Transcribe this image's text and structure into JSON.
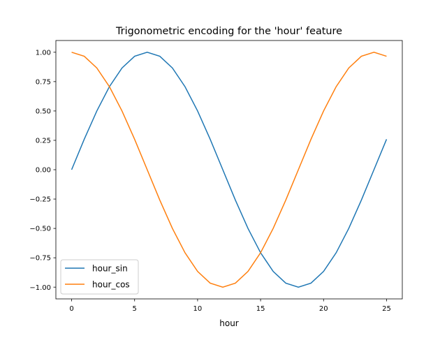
{
  "chart_data": {
    "type": "line",
    "title": "Trigonometric encoding for the 'hour' feature",
    "xlabel": "hour",
    "ylabel": "",
    "xlim": [
      -1.25,
      26.25
    ],
    "ylim": [
      -1.1,
      1.1
    ],
    "grid": false,
    "legend_position": "lower-left",
    "xticks": [
      0,
      5,
      10,
      15,
      20,
      25
    ],
    "xtick_labels": [
      "0",
      "5",
      "10",
      "15",
      "20",
      "25"
    ],
    "yticks": [
      1.0,
      0.75,
      0.5,
      0.25,
      0.0,
      -0.25,
      -0.5,
      -0.75,
      -1.0
    ],
    "ytick_labels": [
      "1.00",
      "0.75",
      "0.50",
      "0.25",
      "0.00",
      "−0.25",
      "−0.50",
      "−0.75",
      "−1.00"
    ],
    "x": [
      0,
      1,
      2,
      3,
      4,
      5,
      6,
      7,
      8,
      9,
      10,
      11,
      12,
      13,
      14,
      15,
      16,
      17,
      18,
      19,
      20,
      21,
      22,
      23,
      24,
      25
    ],
    "series": [
      {
        "name": "hour_sin",
        "color": "#1f77b4",
        "values": [
          0,
          0.2588,
          0.5,
          0.7071,
          0.866,
          0.9659,
          1,
          0.9659,
          0.866,
          0.7071,
          0.5,
          0.2588,
          0,
          -0.2588,
          -0.5,
          -0.7071,
          -0.866,
          -0.9659,
          -1,
          -0.9659,
          -0.866,
          -0.7071,
          -0.5,
          -0.2588,
          0,
          0.2588
        ]
      },
      {
        "name": "hour_cos",
        "color": "#ff7f0e",
        "values": [
          1,
          0.9659,
          0.866,
          0.7071,
          0.5,
          0.2588,
          0,
          -0.2588,
          -0.5,
          -0.7071,
          -0.866,
          -0.9659,
          -1,
          -0.9659,
          -0.866,
          -0.7071,
          -0.5,
          -0.2588,
          0,
          0.2588,
          0.5,
          0.7071,
          0.866,
          0.9659,
          1,
          0.9659
        ]
      }
    ]
  }
}
